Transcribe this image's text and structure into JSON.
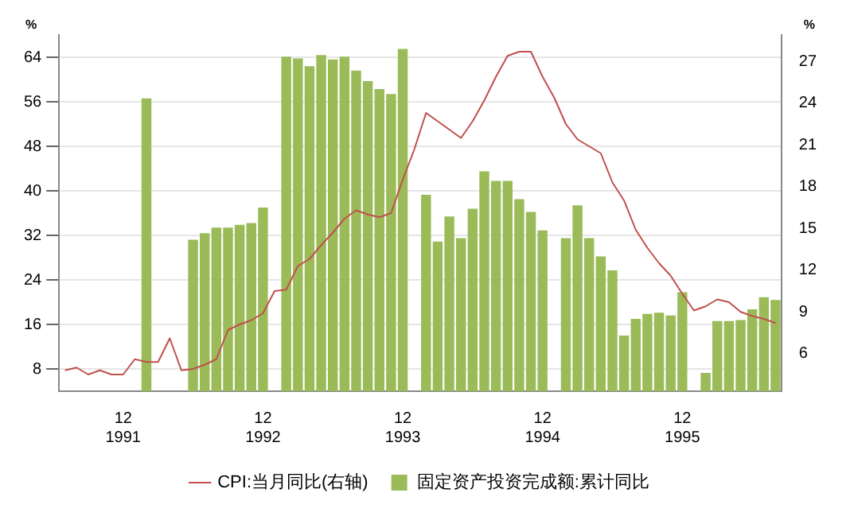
{
  "chart_data": {
    "type": "bar",
    "ylabel": "%",
    "y2label": "%",
    "categories": [
      null,
      null,
      null,
      null,
      null,
      "12\n1991",
      null,
      null,
      null,
      null,
      null,
      null,
      null,
      null,
      null,
      null,
      null,
      "12\n1992",
      null,
      null,
      null,
      null,
      null,
      null,
      null,
      null,
      null,
      null,
      null,
      "12\n1993",
      null,
      null,
      null,
      null,
      null,
      null,
      null,
      null,
      null,
      null,
      null,
      "12\n1994",
      null,
      null,
      null,
      null,
      null,
      null,
      null,
      null,
      null,
      null,
      null,
      "12\n1995",
      null,
      null,
      null,
      null,
      null,
      null,
      null,
      null
    ],
    "series": [
      {
        "name": "CPI:当月同比(右轴)",
        "type": "line",
        "axis": "y2",
        "color": "#c0504d",
        "values": [
          4.8,
          5.0,
          4.5,
          4.8,
          4.5,
          4.5,
          5.6,
          5.4,
          5.4,
          7.1,
          4.8,
          4.9,
          5.2,
          5.6,
          7.7,
          8.1,
          8.4,
          8.9,
          10.5,
          10.6,
          12.3,
          12.8,
          13.8,
          14.7,
          15.7,
          16.3,
          16.0,
          15.8,
          16.1,
          18.5,
          20.7,
          23.3,
          22.7,
          22.1,
          21.5,
          22.7,
          24.2,
          25.9,
          27.4,
          27.7,
          27.7,
          25.9,
          24.4,
          22.5,
          21.4,
          20.9,
          20.4,
          18.3,
          17.0,
          14.9,
          13.6,
          12.5,
          11.6,
          10.3,
          9.1,
          9.4,
          9.9,
          9.7,
          9.0,
          8.7,
          8.5,
          8.2
        ]
      },
      {
        "name": "固定资产投资完成额:累计同比",
        "axis": "y",
        "color": "#9bbb59",
        "values": [
          null,
          null,
          null,
          null,
          null,
          null,
          null,
          56.6,
          null,
          null,
          null,
          31.2,
          32.4,
          33.4,
          33.4,
          33.9,
          34.2,
          37.0,
          null,
          64.1,
          63.8,
          62.4,
          64.4,
          63.6,
          64.1,
          61.6,
          59.7,
          58.3,
          57.4,
          65.5,
          null,
          39.3,
          30.9,
          35.4,
          31.5,
          36.8,
          43.5,
          41.8,
          41.8,
          38.5,
          36.2,
          32.9,
          null,
          31.5,
          37.4,
          31.5,
          28.2,
          25.7,
          14.0,
          17.0,
          17.9,
          18.1,
          17.6,
          21.8,
          null,
          7.3,
          16.6,
          16.6,
          16.8,
          18.7,
          20.9,
          20.4
        ]
      }
    ],
    "ylim": [
      4,
      68
    ],
    "yticks": [
      8,
      16,
      24,
      32,
      40,
      48,
      56,
      64
    ],
    "y2lim": [
      3.3,
      28.9
    ],
    "y2ticks": [
      6,
      9,
      12,
      15,
      18,
      21,
      24,
      27
    ],
    "grid": "y",
    "legend": "bottom",
    "marker": "none",
    "line_style": "solid"
  }
}
